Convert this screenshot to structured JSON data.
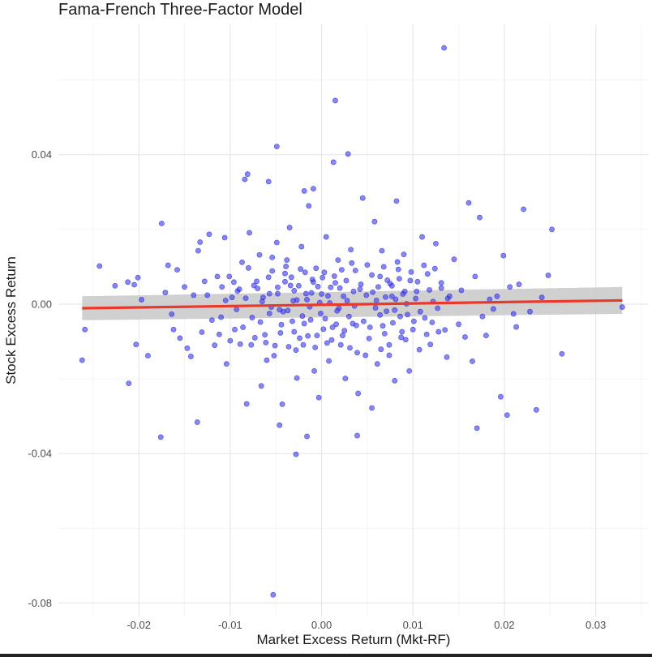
{
  "chart_data": {
    "type": "scatter",
    "title": "Fama-French Three-Factor Model",
    "xlabel": "Market Excess Return (Mkt-RF)",
    "ylabel": "Stock Excess Return",
    "xlim": [
      -0.0288,
      0.0358
    ],
    "ylim": [
      -0.0836,
      0.0749
    ],
    "x_ticks": [
      -0.02,
      -0.01,
      0.0,
      0.01,
      0.02,
      0.03
    ],
    "x_tick_labels": [
      "-0.02",
      "-0.01",
      "0.00",
      "0.01",
      "0.02",
      "0.03"
    ],
    "y_ticks": [
      -0.08,
      -0.04,
      0.0,
      0.04
    ],
    "y_tick_labels": [
      "-0.08",
      "-0.04",
      "0.00",
      "0.04"
    ],
    "grid": true,
    "point_color": "#3333ff",
    "fit_color": "#e8392b",
    "band_color": "#c8c8c8",
    "fit_line": {
      "x": [
        -0.0262,
        0.0329
      ],
      "y": [
        -0.0011,
        0.001
      ]
    },
    "fit_band": {
      "x": [
        -0.0262,
        0.0329
      ],
      "upper": [
        0.0021,
        0.0046
      ],
      "lower": [
        -0.0043,
        -0.0026
      ]
    },
    "points": [
      [
        -0.0262,
        -0.015
      ],
      [
        -0.0259,
        -0.0068
      ],
      [
        -0.0243,
        0.0102
      ],
      [
        -0.0226,
        0.0049
      ],
      [
        -0.0211,
        -0.0212
      ],
      [
        -0.0212,
        0.0059
      ],
      [
        -0.0205,
        0.0052
      ],
      [
        -0.0203,
        -0.0108
      ],
      [
        -0.0201,
        0.0071
      ],
      [
        -0.0197,
        0.0012
      ],
      [
        -0.019,
        -0.0138
      ],
      [
        -0.0176,
        -0.0356
      ],
      [
        -0.0175,
        0.0216
      ],
      [
        -0.0171,
        0.0031
      ],
      [
        -0.0168,
        0.0104
      ],
      [
        -0.0164,
        -0.0027
      ],
      [
        -0.0162,
        -0.0068
      ],
      [
        -0.0158,
        0.0092
      ],
      [
        -0.0155,
        -0.0091
      ],
      [
        -0.015,
        0.0046
      ],
      [
        -0.0147,
        -0.0118
      ],
      [
        -0.0143,
        -0.014
      ],
      [
        -0.014,
        0.0024
      ],
      [
        -0.0136,
        -0.0316
      ],
      [
        -0.0135,
        0.0143
      ],
      [
        -0.0133,
        0.0166
      ],
      [
        -0.0131,
        -0.0075
      ],
      [
        -0.0128,
        0.0061
      ],
      [
        -0.0125,
        0.0024
      ],
      [
        -0.0123,
        0.0187
      ],
      [
        -0.012,
        -0.0043
      ],
      [
        -0.0117,
        -0.011
      ],
      [
        -0.0114,
        0.0074
      ],
      [
        -0.0112,
        -0.0081
      ],
      [
        -0.0109,
        0.0046
      ],
      [
        -0.0106,
        0.0178
      ],
      [
        -0.0104,
        -0.016
      ],
      [
        -0.0101,
        0.0074
      ],
      [
        -0.0098,
        0.0018
      ],
      [
        -0.0095,
        -0.0068
      ],
      [
        -0.0092,
        0.0035
      ],
      [
        -0.0089,
        -0.0107
      ],
      [
        -0.0087,
        0.0112
      ],
      [
        -0.0084,
        0.0334
      ],
      [
        -0.0081,
        0.0348
      ],
      [
        -0.0079,
        0.0191
      ],
      [
        -0.0076,
        -0.0036
      ],
      [
        -0.0073,
        -0.009
      ],
      [
        -0.0071,
        0.0061
      ],
      [
        -0.0068,
        0.0132
      ],
      [
        -0.0065,
        0.0007
      ],
      [
        -0.0062,
        -0.0082
      ],
      [
        -0.006,
        -0.015
      ],
      [
        -0.0057,
        0.0028
      ],
      [
        -0.0054,
        0.0089
      ],
      [
        -0.0051,
        -0.0111
      ],
      [
        -0.0049,
        0.0165
      ],
      [
        -0.0046,
        -0.0015
      ],
      [
        -0.0043,
        -0.0268
      ],
      [
        -0.004,
        0.006
      ],
      [
        -0.0038,
        0.0118
      ],
      [
        -0.0035,
        0.0205
      ],
      [
        -0.0032,
        -0.0046
      ],
      [
        -0.003,
        0.0036
      ],
      [
        -0.0027,
        -0.0198
      ],
      [
        -0.0024,
        -0.0091
      ],
      [
        -0.0022,
        0.0154
      ],
      [
        -0.0019,
        -0.0052
      ],
      [
        -0.0016,
        0.0012
      ],
      [
        -0.0014,
        0.0263
      ],
      [
        -0.0011,
        0.003
      ],
      [
        -0.0008,
        -0.0179
      ],
      [
        -0.0006,
        0.0096
      ],
      [
        -0.0003,
        -0.025
      ],
      [
        0.0,
        0.0027
      ],
      [
        0.0002,
        -0.0067
      ],
      [
        0.0005,
        0.018
      ],
      [
        0.0008,
        -0.0152
      ],
      [
        0.001,
        0.0045
      ],
      [
        0.0013,
        0.038
      ],
      [
        0.0016,
        -0.0054
      ],
      [
        0.0018,
        0.0118
      ],
      [
        0.0021,
        -0.0109
      ],
      [
        0.0024,
        0.0021
      ],
      [
        0.0026,
        -0.0199
      ],
      [
        0.0029,
        0.0402
      ],
      [
        0.0032,
        0.0146
      ],
      [
        0.0034,
        -0.0052
      ],
      [
        0.0037,
        0.009
      ],
      [
        0.004,
        -0.0239
      ],
      [
        0.0042,
        0.004
      ],
      [
        0.0045,
        0.0284
      ],
      [
        0.0048,
        -0.0137
      ],
      [
        0.005,
        0.0105
      ],
      [
        0.0053,
        -0.0062
      ],
      [
        0.0056,
        0.0032
      ],
      [
        0.0058,
        0.0221
      ],
      [
        0.0061,
        -0.016
      ],
      [
        0.0064,
        -0.0029
      ],
      [
        0.0066,
        0.0143
      ],
      [
        0.0069,
        -0.0079
      ],
      [
        0.0072,
        0.0064
      ],
      [
        0.0074,
        -0.0109
      ],
      [
        0.0077,
        0.0021
      ],
      [
        0.008,
        -0.0205
      ],
      [
        0.0082,
        0.0276
      ],
      [
        0.0085,
        0.0068
      ],
      [
        0.0088,
        -0.0074
      ],
      [
        0.009,
        0.0133
      ],
      [
        0.0093,
        0.0001
      ],
      [
        0.0096,
        -0.0179
      ],
      [
        0.0098,
        0.0086
      ],
      [
        0.0101,
        -0.0046
      ],
      [
        0.0104,
        0.0034
      ],
      [
        0.0107,
        -0.0122
      ],
      [
        0.011,
        0.018
      ],
      [
        0.0113,
        -0.0037
      ],
      [
        0.0116,
        0.0081
      ],
      [
        0.0119,
        -0.0108
      ],
      [
        0.0122,
        0.0007
      ],
      [
        0.0125,
        0.0162
      ],
      [
        0.0128,
        -0.0074
      ],
      [
        0.0131,
        0.0057
      ],
      [
        0.0134,
        0.0686
      ],
      [
        0.0137,
        -0.0142
      ],
      [
        0.014,
        0.0021
      ],
      [
        0.0145,
        0.012
      ],
      [
        0.015,
        -0.0054
      ],
      [
        0.0153,
        0.0037
      ],
      [
        0.0157,
        -0.0088
      ],
      [
        0.0161,
        0.0271
      ],
      [
        0.0165,
        -0.0153
      ],
      [
        0.0168,
        0.0074
      ],
      [
        0.017,
        -0.0332
      ],
      [
        0.0173,
        0.0232
      ],
      [
        0.0176,
        -0.0033
      ],
      [
        0.018,
        -0.0084
      ],
      [
        0.0184,
        0.0013
      ],
      [
        0.0188,
        -0.0013
      ],
      [
        0.0192,
        0.0021
      ],
      [
        0.0196,
        -0.0248
      ],
      [
        0.0199,
        0.013
      ],
      [
        0.0203,
        -0.0297
      ],
      [
        0.0206,
        0.0046
      ],
      [
        0.021,
        -0.0026
      ],
      [
        0.0213,
        -0.0061
      ],
      [
        0.0216,
        0.0053
      ],
      [
        0.0221,
        0.0254
      ],
      [
        0.0228,
        -0.002
      ],
      [
        0.0235,
        -0.0283
      ],
      [
        0.0241,
        0.0018
      ],
      [
        0.0248,
        0.0077
      ],
      [
        0.0252,
        0.02
      ],
      [
        0.0263,
        -0.0133
      ],
      [
        0.0329,
        -0.0008
      ],
      [
        -0.0028,
        -0.0402
      ],
      [
        -0.0053,
        -0.0778
      ],
      [
        -0.0049,
        0.0422
      ],
      [
        0.0015,
        0.0545
      ],
      [
        -0.0009,
        0.0309
      ],
      [
        -0.0019,
        0.0303
      ],
      [
        -0.0058,
        0.0328
      ],
      [
        -0.0046,
        -0.0324
      ],
      [
        -0.0016,
        -0.0354
      ],
      [
        0.0039,
        -0.0352
      ],
      [
        0.0055,
        -0.0278
      ],
      [
        -0.0082,
        -0.0267
      ],
      [
        -0.0066,
        -0.0219
      ],
      [
        -0.0057,
        -0.0025
      ],
      [
        -0.0054,
        0.0125
      ],
      [
        -0.0048,
        0.0045
      ],
      [
        -0.0045,
        -0.0077
      ],
      [
        -0.0042,
        -0.002
      ],
      [
        -0.0039,
        0.0101
      ],
      [
        -0.0036,
        -0.0114
      ],
      [
        -0.0033,
        0.0072
      ],
      [
        -0.0031,
        0.0009
      ],
      [
        -0.0028,
        -0.0123
      ],
      [
        -0.0025,
        0.0049
      ],
      [
        -0.0021,
        -0.0032
      ],
      [
        -0.0018,
        0.0085
      ],
      [
        -0.0015,
        -0.0085
      ],
      [
        -0.0013,
        -0.0007
      ],
      [
        -0.001,
        0.0066
      ],
      [
        -0.0007,
        -0.0116
      ],
      [
        -0.0004,
        0.0047
      ],
      [
        -0.0001,
        -0.0025
      ],
      [
        0.0003,
        0.0085
      ],
      [
        0.0006,
        -0.0104
      ],
      [
        0.0009,
        0.0003
      ],
      [
        0.0012,
        -0.0062
      ],
      [
        0.0014,
        0.0075
      ],
      [
        0.0017,
        -0.0018
      ],
      [
        0.002,
        0.0043
      ],
      [
        0.0023,
        -0.0084
      ],
      [
        0.0027,
        0.0063
      ],
      [
        0.003,
        -0.0033
      ],
      [
        0.0033,
        0.011
      ],
      [
        0.0036,
        -0.0005
      ],
      [
        0.0039,
        -0.013
      ],
      [
        0.0043,
        0.0053
      ],
      [
        0.0046,
        -0.0046
      ],
      [
        0.0049,
        0.0024
      ],
      [
        0.0052,
        -0.0092
      ],
      [
        0.0055,
        0.0078
      ],
      [
        0.0059,
        -0.001
      ],
      [
        0.0062,
        0.0046
      ],
      [
        0.0065,
        -0.0121
      ],
      [
        0.0068,
        0.01
      ],
      [
        0.0071,
        -0.0019
      ],
      [
        0.0075,
        0.0055
      ],
      [
        0.0078,
        -0.005
      ],
      [
        0.0081,
        0.0013
      ],
      [
        0.0084,
        0.0093
      ],
      [
        0.0087,
        -0.0089
      ],
      [
        0.0091,
        0.0034
      ],
      [
        0.0094,
        -0.0028
      ],
      [
        0.0097,
        0.0063
      ],
      [
        0.01,
        -0.0068
      ],
      [
        0.0103,
        0.0015
      ],
      [
        -0.007,
        0.0042
      ],
      [
        -0.0067,
        -0.0048
      ],
      [
        -0.0064,
        0.0018
      ],
      [
        -0.0061,
        -0.0103
      ],
      [
        -0.0058,
        0.0072
      ],
      [
        -0.0055,
        -0.0008
      ],
      [
        -0.0052,
        -0.0138
      ],
      [
        -0.0048,
        0.0028
      ],
      [
        -0.0044,
        -0.0055
      ],
      [
        -0.004,
        0.0082
      ],
      [
        -0.0037,
        -0.0017
      ],
      [
        -0.0034,
        0.005
      ],
      [
        -0.003,
        -0.0074
      ],
      [
        -0.0027,
        0.0011
      ],
      [
        -0.0023,
        0.0094
      ],
      [
        -0.002,
        -0.0109
      ],
      [
        -0.0017,
        0.0028
      ],
      [
        -0.0012,
        -0.0042
      ],
      [
        -0.0009,
        0.0059
      ],
      [
        -0.0005,
        -0.0084
      ],
      [
        -0.0002,
        0.0004
      ],
      [
        0.0001,
        0.0071
      ],
      [
        0.0004,
        -0.0039
      ],
      [
        0.0007,
        0.0022
      ],
      [
        0.0011,
        -0.0096
      ],
      [
        0.0015,
        0.0057
      ],
      [
        0.0019,
        -0.0011
      ],
      [
        0.0022,
        0.0092
      ],
      [
        0.0025,
        -0.0071
      ],
      [
        0.0028,
        0.0009
      ],
      [
        0.0031,
        -0.0117
      ],
      [
        0.0035,
        0.0034
      ],
      [
        0.0038,
        -0.0057
      ],
      [
        -0.011,
        -0.0035
      ],
      [
        -0.0105,
        0.001
      ],
      [
        -0.01,
        -0.0098
      ],
      [
        -0.0096,
        0.0059
      ],
      [
        -0.0093,
        -0.0014
      ],
      [
        -0.009,
        0.004
      ],
      [
        -0.0086,
        -0.0062
      ],
      [
        -0.0083,
        0.0016
      ],
      [
        -0.008,
        0.0097
      ],
      [
        -0.0077,
        -0.0109
      ],
      [
        -0.0074,
        0.005
      ],
      [
        0.006,
        0.001
      ],
      [
        0.0064,
        0.0074
      ],
      [
        0.0067,
        -0.0058
      ],
      [
        0.007,
        0.0019
      ],
      [
        0.0074,
        -0.0137
      ],
      [
        0.0077,
        0.0049
      ],
      [
        0.008,
        -0.0016
      ],
      [
        0.0083,
        0.0113
      ],
      [
        0.0086,
        -0.0033
      ],
      [
        0.0089,
        0.0027
      ],
      [
        0.0092,
        -0.0095
      ],
      [
        0.0105,
        0.006
      ],
      [
        0.0108,
        -0.002
      ],
      [
        0.0112,
        0.0104
      ],
      [
        0.0115,
        -0.0081
      ],
      [
        0.0118,
        0.0038
      ],
      [
        0.0121,
        -0.0049
      ],
      [
        0.0124,
        0.0095
      ],
      [
        0.0127,
        -0.0011
      ],
      [
        0.0131,
        0.0043
      ],
      [
        0.0135,
        -0.0069
      ],
      [
        0.0138,
        0.0015
      ]
    ]
  }
}
